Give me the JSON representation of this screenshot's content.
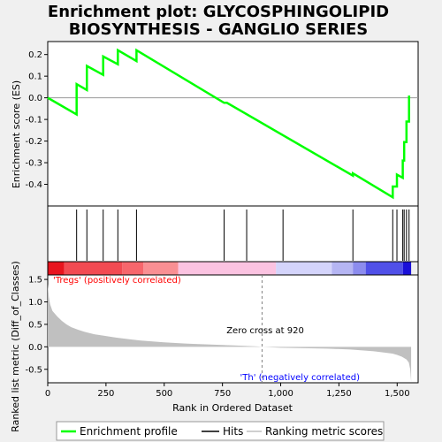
{
  "chart_data": {
    "type": "line",
    "title_lines": [
      "Enrichment plot: GLYCOSPHINGOLIPID",
      "BIOSYNTHESIS - GANGLIO SERIES"
    ],
    "es_panel": {
      "ylabel": "Enrichment score (ES)",
      "ylim": [
        -0.5,
        0.26
      ],
      "yticks": [
        0.2,
        0.1,
        0.0,
        -0.1,
        -0.2,
        -0.3,
        -0.4
      ],
      "ytick_labels": [
        "0.2",
        "0.1",
        "0.0",
        "-0.1",
        "-0.2",
        "-0.3",
        "-0.4"
      ],
      "curve": {
        "name": "Enrichment profile",
        "color": "#00ff00",
        "x": [
          0,
          124,
          124,
          168,
          168,
          238,
          238,
          301,
          301,
          381,
          381,
          757,
          769,
          1310,
          1310,
          1481,
          1481,
          1499,
          1499,
          1524,
          1524,
          1530,
          1530,
          1540,
          1540,
          1551,
          1551,
          1556
        ],
        "y": [
          0.0,
          -0.077,
          0.063,
          0.036,
          0.147,
          0.106,
          0.191,
          0.155,
          0.22,
          0.17,
          0.22,
          -0.023,
          -0.023,
          -0.36,
          -0.349,
          -0.46,
          -0.41,
          -0.41,
          -0.355,
          -0.37,
          -0.29,
          -0.29,
          -0.205,
          -0.205,
          -0.11,
          -0.11,
          0.005,
          0.005
        ]
      }
    },
    "hits_panel": {
      "name": "Hits",
      "positions": [
        124,
        168,
        238,
        301,
        381,
        757,
        854,
        1010,
        1310,
        1481,
        1499,
        1524,
        1530,
        1540,
        1551
      ]
    },
    "colorbar": {
      "segments": [
        {
          "from": 0,
          "to": 70,
          "color": "#e8141e"
        },
        {
          "from": 70,
          "to": 320,
          "color": "#f24a52"
        },
        {
          "from": 320,
          "to": 410,
          "color": "#f7666c"
        },
        {
          "from": 410,
          "to": 560,
          "color": "#f98f93"
        },
        {
          "from": 560,
          "to": 980,
          "color": "#fbc3e1"
        },
        {
          "from": 980,
          "to": 1220,
          "color": "#d4d4fb"
        },
        {
          "from": 1220,
          "to": 1310,
          "color": "#b5b5f3"
        },
        {
          "from": 1310,
          "to": 1365,
          "color": "#8c8cee"
        },
        {
          "from": 1365,
          "to": 1525,
          "color": "#5050e8"
        },
        {
          "from": 1525,
          "to": 1560,
          "color": "#1a10d8"
        }
      ]
    },
    "metric_panel": {
      "name": "Ranking metric scores",
      "ylabel": "Ranked list metric (Diff_of_Classes)",
      "ylim": [
        -0.8,
        1.6
      ],
      "yticks": [
        1.5,
        1.0,
        0.5,
        0.0,
        -0.5
      ],
      "ytick_labels": [
        "1.5",
        "1.0",
        "0.5",
        "0.0",
        "-0.5"
      ],
      "fill_color": "#c0c0c0",
      "x": [
        0,
        5,
        10,
        20,
        40,
        60,
        80,
        100,
        130,
        160,
        200,
        250,
        300,
        350,
        400,
        450,
        500,
        600,
        700,
        800,
        900,
        920,
        1000,
        1100,
        1200,
        1300,
        1350,
        1400,
        1450,
        1480,
        1500,
        1520,
        1540,
        1550,
        1556,
        1560
      ],
      "values": [
        1.4,
        1.1,
        0.95,
        0.8,
        0.68,
        0.58,
        0.5,
        0.44,
        0.38,
        0.33,
        0.28,
        0.24,
        0.2,
        0.17,
        0.14,
        0.12,
        0.1,
        0.07,
        0.05,
        0.03,
        0.01,
        0.0,
        -0.02,
        -0.03,
        -0.04,
        -0.06,
        -0.08,
        -0.1,
        -0.13,
        -0.15,
        -0.18,
        -0.22,
        -0.28,
        -0.35,
        -0.5,
        -0.78
      ],
      "zero_cross_label": "Zero cross at 920",
      "zero_cross_x": 920,
      "pos_label": "'Tregs' (positively correlated)",
      "neg_label": "'Th' (negatively correlated)"
    },
    "xlabel": "Rank in Ordered Dataset",
    "xlim": [
      0,
      1590
    ],
    "xticks": [
      0,
      250,
      500,
      750,
      1000,
      1250,
      1500
    ],
    "xtick_labels": [
      "0",
      "250",
      "500",
      "750",
      "1,000",
      "1,250",
      "1,500"
    ],
    "legend": {
      "placement": "bottom",
      "entries": [
        "Enrichment profile",
        "Hits",
        "Ranking metric scores"
      ]
    }
  }
}
